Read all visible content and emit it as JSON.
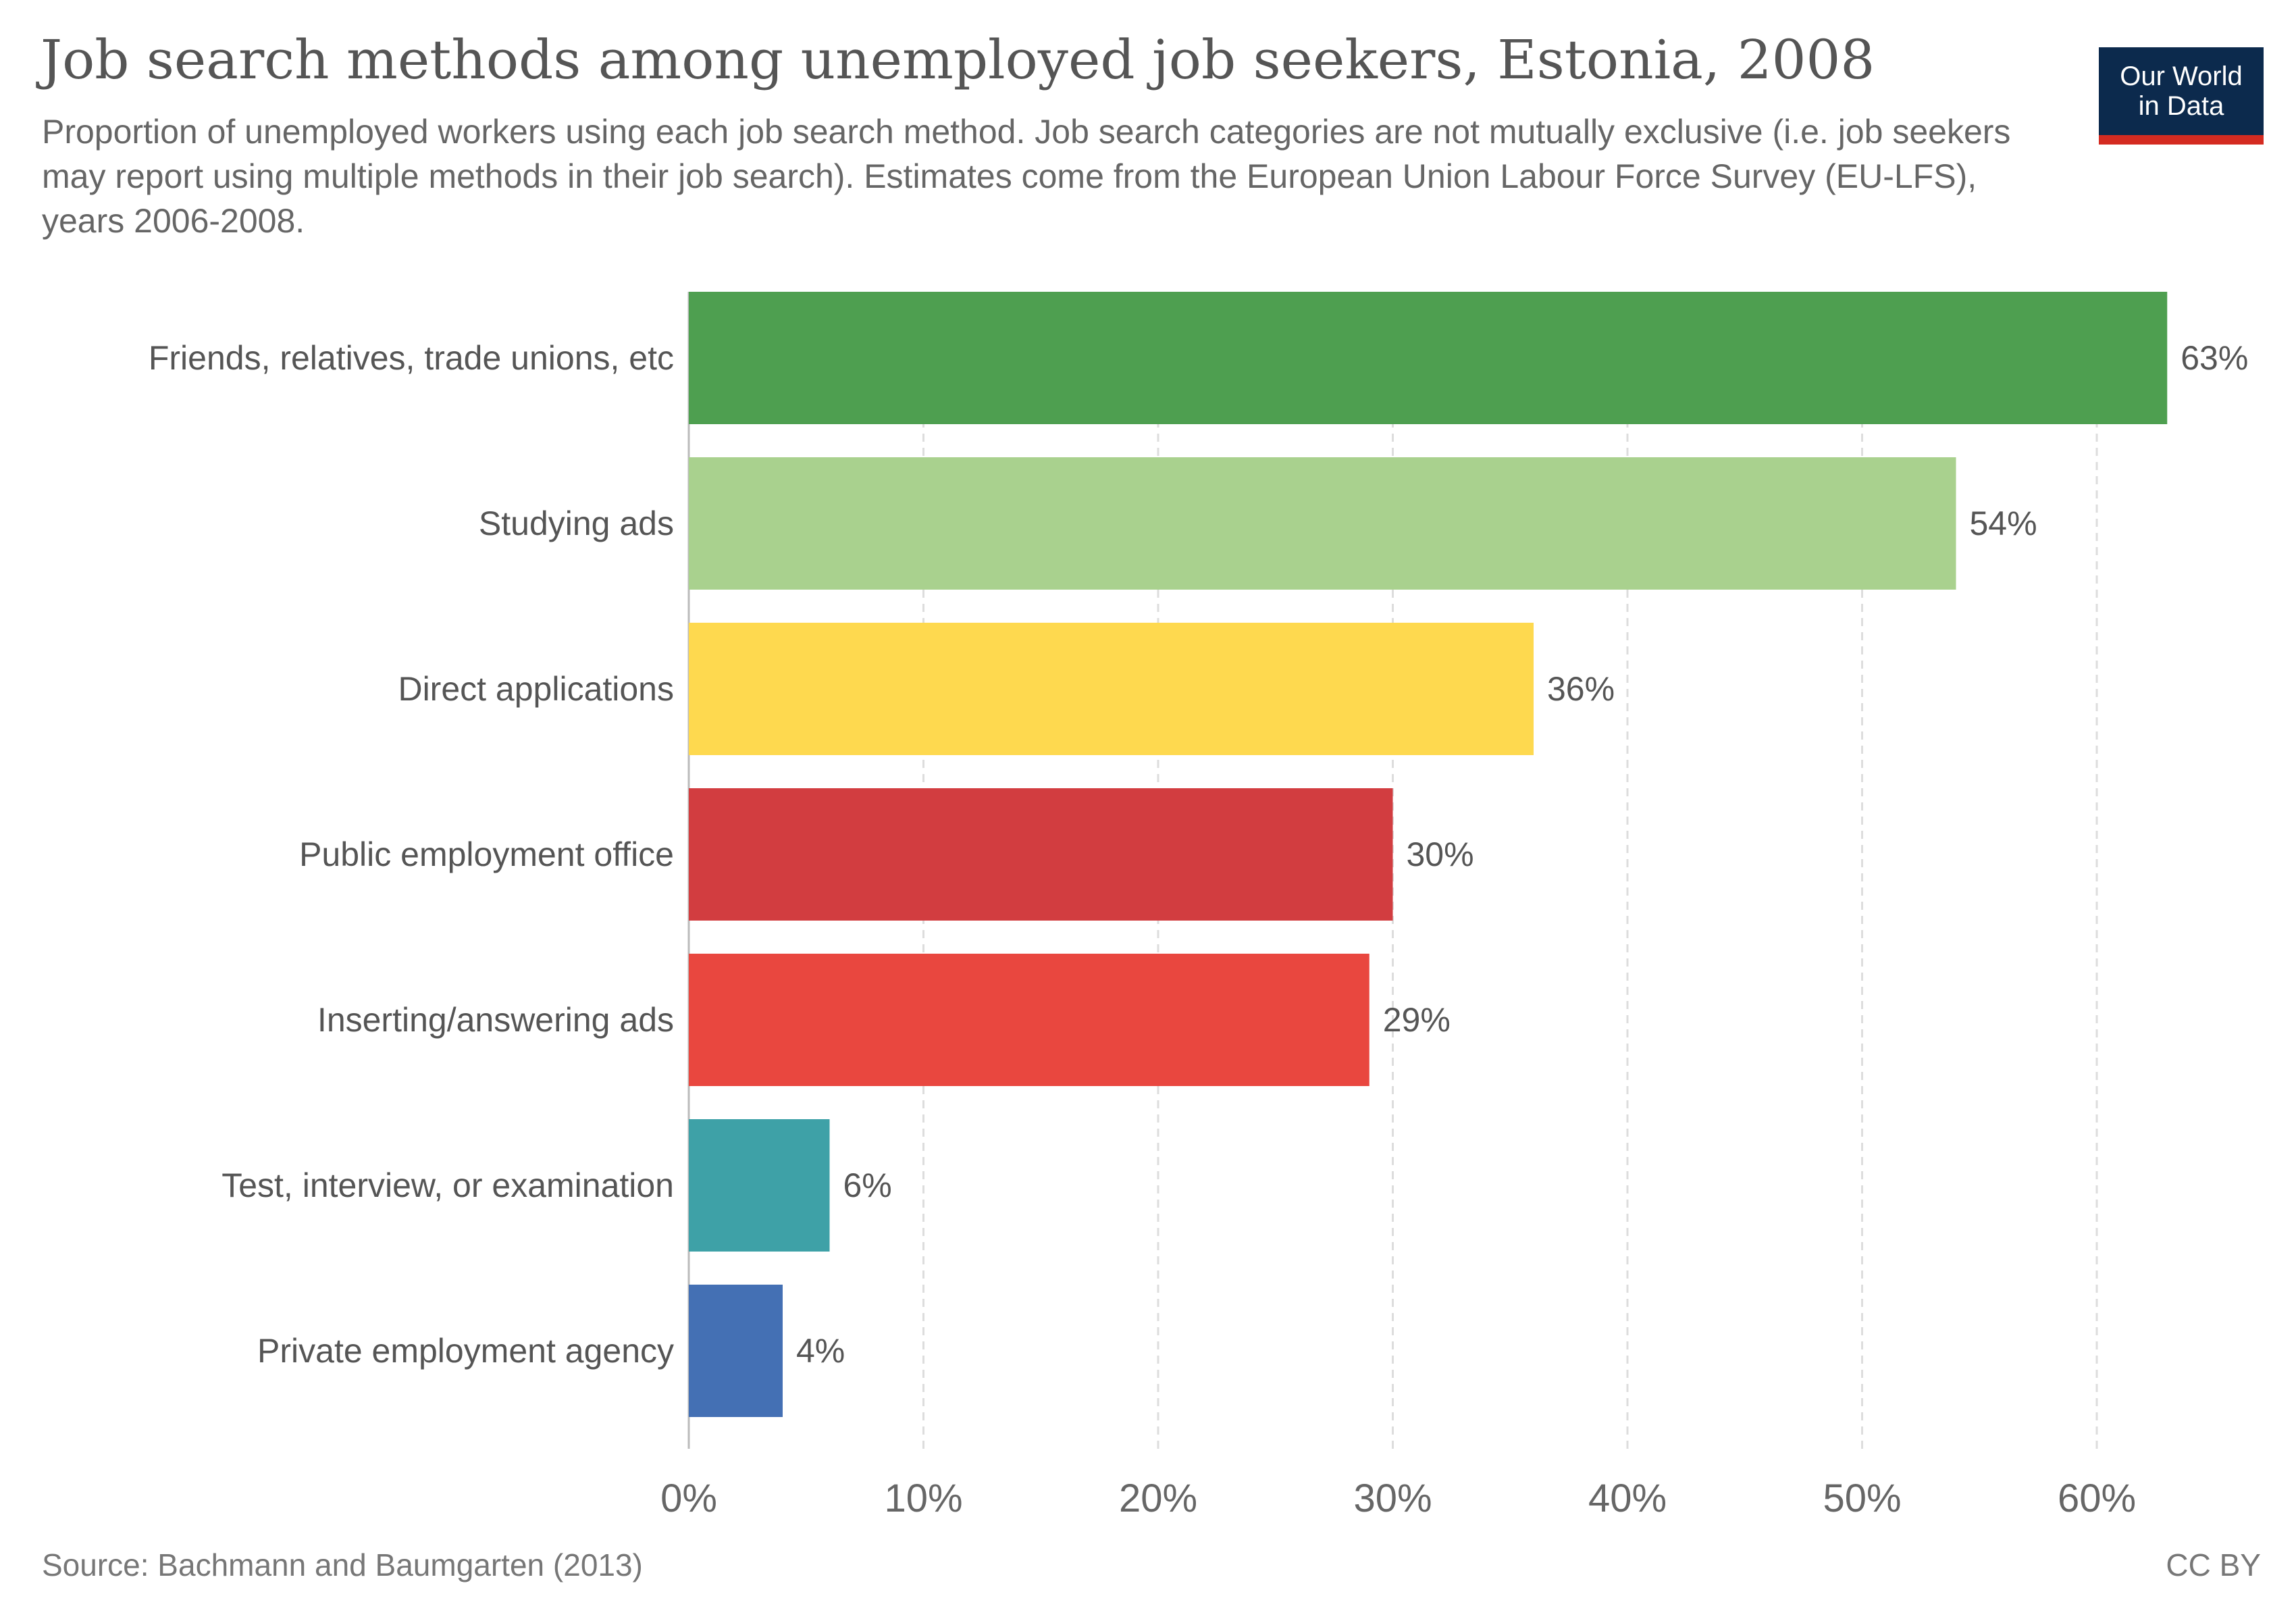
{
  "header": {
    "title": "Job search methods among unemployed job seekers, Estonia, 2008",
    "subtitle": "Proportion of unemployed workers using each job search method. Job search categories are not mutually exclusive (i.e. job seekers may report using multiple methods in their job search). Estimates come from the European Union Labour Force Survey (EU-LFS), years 2006-2008."
  },
  "logo": {
    "line1": "Our World",
    "line2": "in Data"
  },
  "footer": {
    "source": "Source: Bachmann and Baumgarten (2013)",
    "license": "CC BY"
  },
  "chart_data": {
    "type": "bar",
    "orientation": "horizontal",
    "categories": [
      "Friends, relatives, trade unions, etc",
      "Studying ads",
      "Direct applications",
      "Public employment office",
      "Inserting/answering ads",
      "Test, interview, or examination",
      "Private employment agency"
    ],
    "values": [
      63,
      54,
      36,
      30,
      29,
      6,
      4
    ],
    "value_labels": [
      "63%",
      "54%",
      "36%",
      "30%",
      "29%",
      "6%",
      "4%"
    ],
    "colors": [
      "#4e9f50",
      "#a9d18e",
      "#fed94f",
      "#d23d40",
      "#e9473f",
      "#3ea1a7",
      "#4470b4"
    ],
    "xlim": [
      0,
      63
    ],
    "x_ticks": [
      0,
      10,
      20,
      30,
      40,
      50,
      60
    ],
    "x_tick_labels": [
      "0%",
      "10%",
      "20%",
      "30%",
      "40%",
      "50%",
      "60%"
    ],
    "grid": true,
    "grid_color": "#dddddd",
    "legend": "none"
  }
}
